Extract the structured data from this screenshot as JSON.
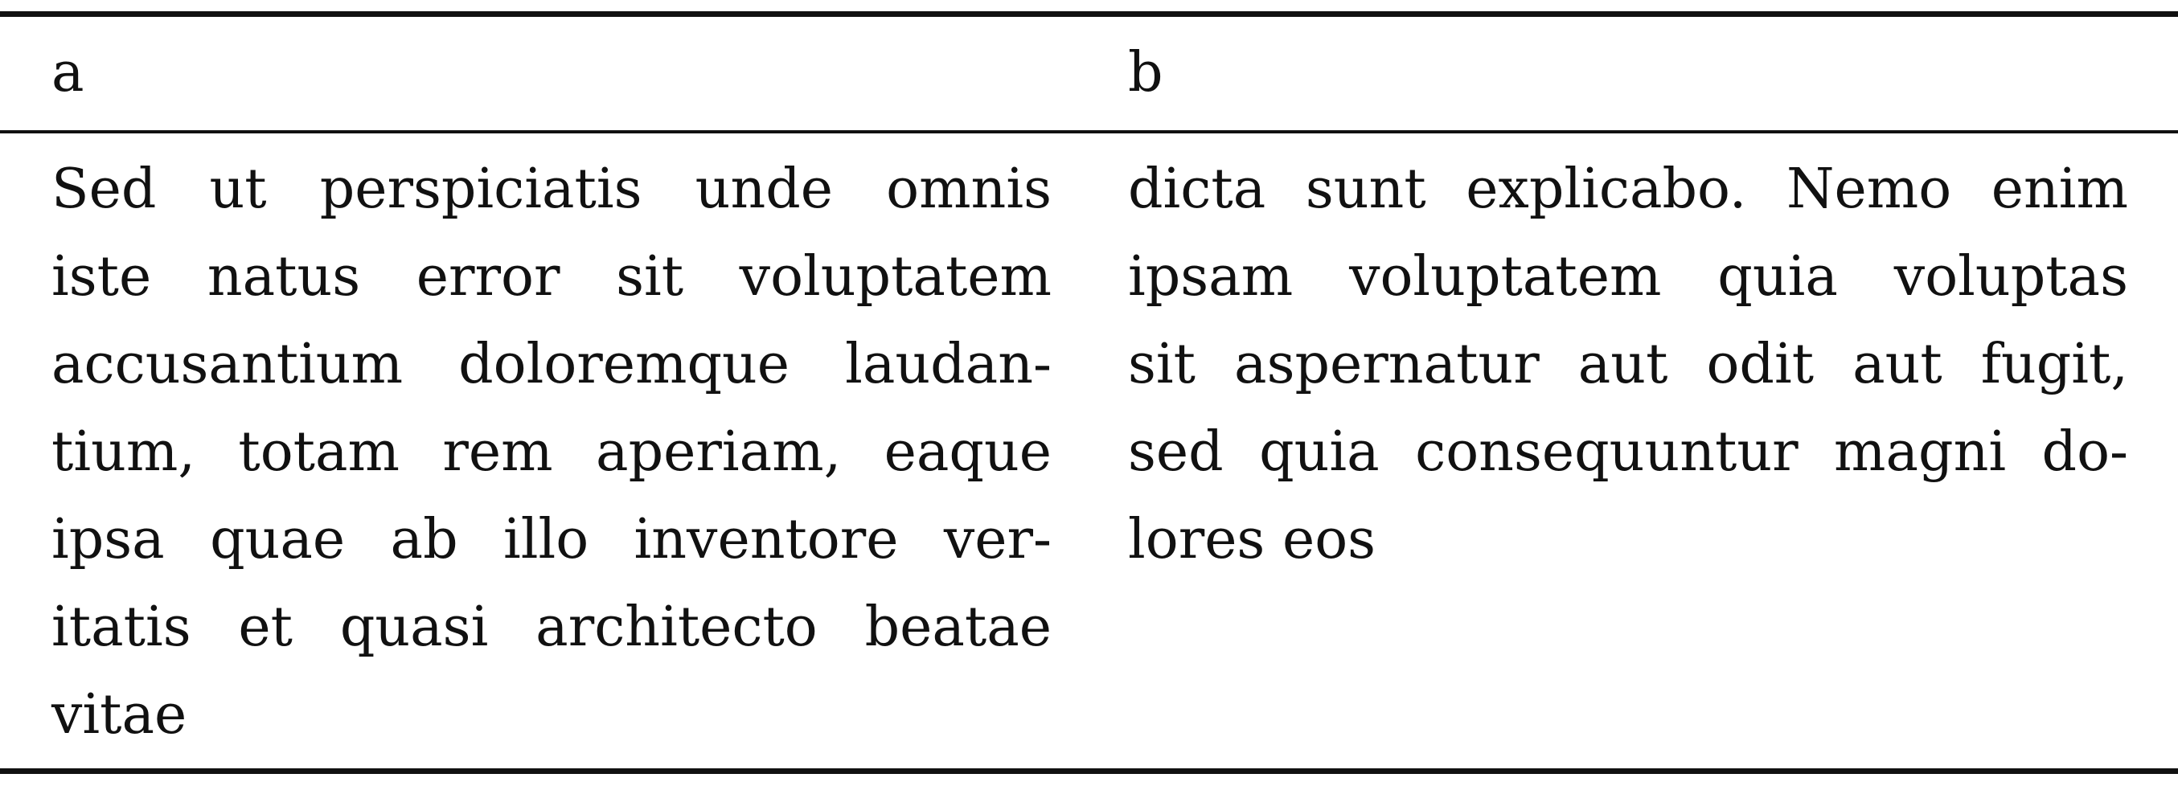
{
  "table": {
    "headers": [
      "a",
      "b"
    ],
    "row": {
      "a_lines": [
        "Sed ut perspiciatis unde omnis",
        "iste natus error sit voluptatem",
        "accusantium doloremque laudan-",
        "tium, totam rem aperiam, eaque",
        "ipsa quae ab illo inventore ver-",
        "itatis et quasi architecto beatae",
        "vitae"
      ],
      "b_lines": [
        "dicta sunt explicabo. Nemo enim",
        "ipsam voluptatem quia voluptas",
        "sit aspernatur aut odit aut fugit,",
        "sed quia consequuntur magni do-",
        "lores eos"
      ]
    }
  }
}
